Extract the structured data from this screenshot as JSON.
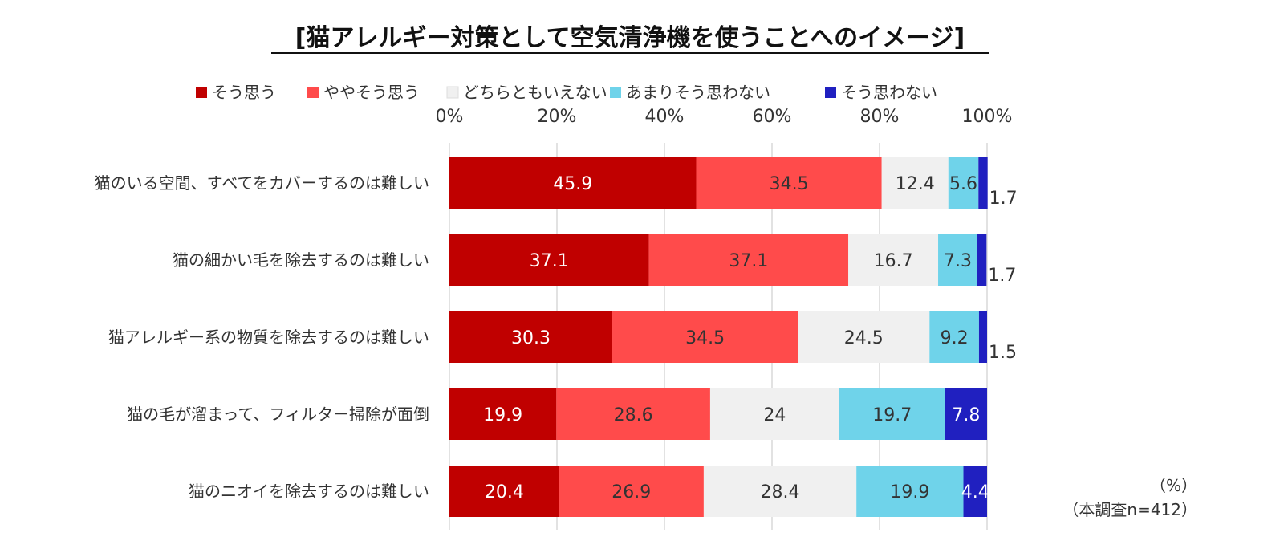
{
  "chart_data": {
    "type": "bar",
    "orientation": "horizontal",
    "stacked": true,
    "title": "[猫アレルギー対策として空気清浄機を使うことへのイメージ]",
    "categories": [
      "猫のいる空間、すべてをカバーするのは難しい",
      "猫の細かい毛を除去するのは難しい",
      "猫アレルギー系の物質を除去するのは難しい",
      "猫の毛が溜まって、フィルター掃除が面倒",
      "猫のニオイを除去するのは難しい"
    ],
    "series": [
      {
        "name": "そう思う",
        "color": "#c00000",
        "label_color": "#ffffff",
        "values": [
          45.9,
          37.1,
          30.3,
          19.9,
          20.4
        ]
      },
      {
        "name": "ややそう思う",
        "color": "#ff4b4b",
        "label_color": "#333333",
        "values": [
          34.5,
          37.1,
          34.5,
          28.6,
          26.9
        ]
      },
      {
        "name": "どちらともいえない",
        "color": "#f0f0f0",
        "label_color": "#333333",
        "values": [
          12.4,
          16.7,
          24.5,
          24,
          28.4
        ]
      },
      {
        "name": "あまりそう思わない",
        "color": "#6fd3ea",
        "label_color": "#333333",
        "values": [
          5.6,
          7.3,
          9.2,
          19.7,
          19.9
        ]
      },
      {
        "name": "そう思わない",
        "color": "#2020c0",
        "label_color": "#ffffff",
        "values": [
          1.7,
          1.7,
          1.5,
          7.8,
          4.4
        ]
      }
    ],
    "xlim": [
      0,
      100
    ],
    "xticks": [
      "0%",
      "20%",
      "40%",
      "60%",
      "80%",
      "100%"
    ],
    "grid": true,
    "legend_position": "top",
    "notes": [
      "（%）",
      "（本調査n=412）"
    ]
  }
}
